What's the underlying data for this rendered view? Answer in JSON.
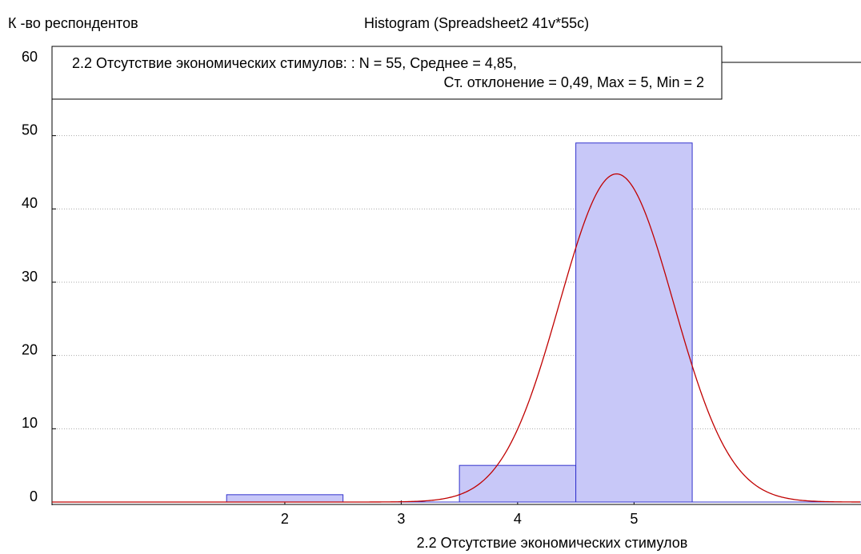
{
  "chart_data": {
    "type": "histogram",
    "title": "Histogram (Spreadsheet2 41v*55c)",
    "ylabel": "К -во респондентов",
    "xlabel": "2.2 Отсутствие экономических стимулов",
    "annotation": [
      "2.2 Отсутствие экономических стимулов:  :   N = 55, Среднее = 4,85,",
      "Ст. отклонение  = 0,49,  Max = 5, Min = 2"
    ],
    "bins": [
      1.5,
      2.5,
      3.5,
      4.5,
      5.5
    ],
    "counts": [
      1,
      0,
      5,
      49
    ],
    "color": "#c8c8f8",
    "edge_color": "#3333cc",
    "curve": {
      "mean": 4.85,
      "sd": 0.49,
      "n": 55,
      "color": "#c00000"
    },
    "xlim": [
      0,
      6.95
    ],
    "ylim": [
      0,
      60
    ],
    "xticks": [
      2,
      3,
      4,
      5
    ],
    "yticks": [
      0,
      10,
      20,
      30,
      40,
      50,
      60
    ],
    "grid": true
  }
}
